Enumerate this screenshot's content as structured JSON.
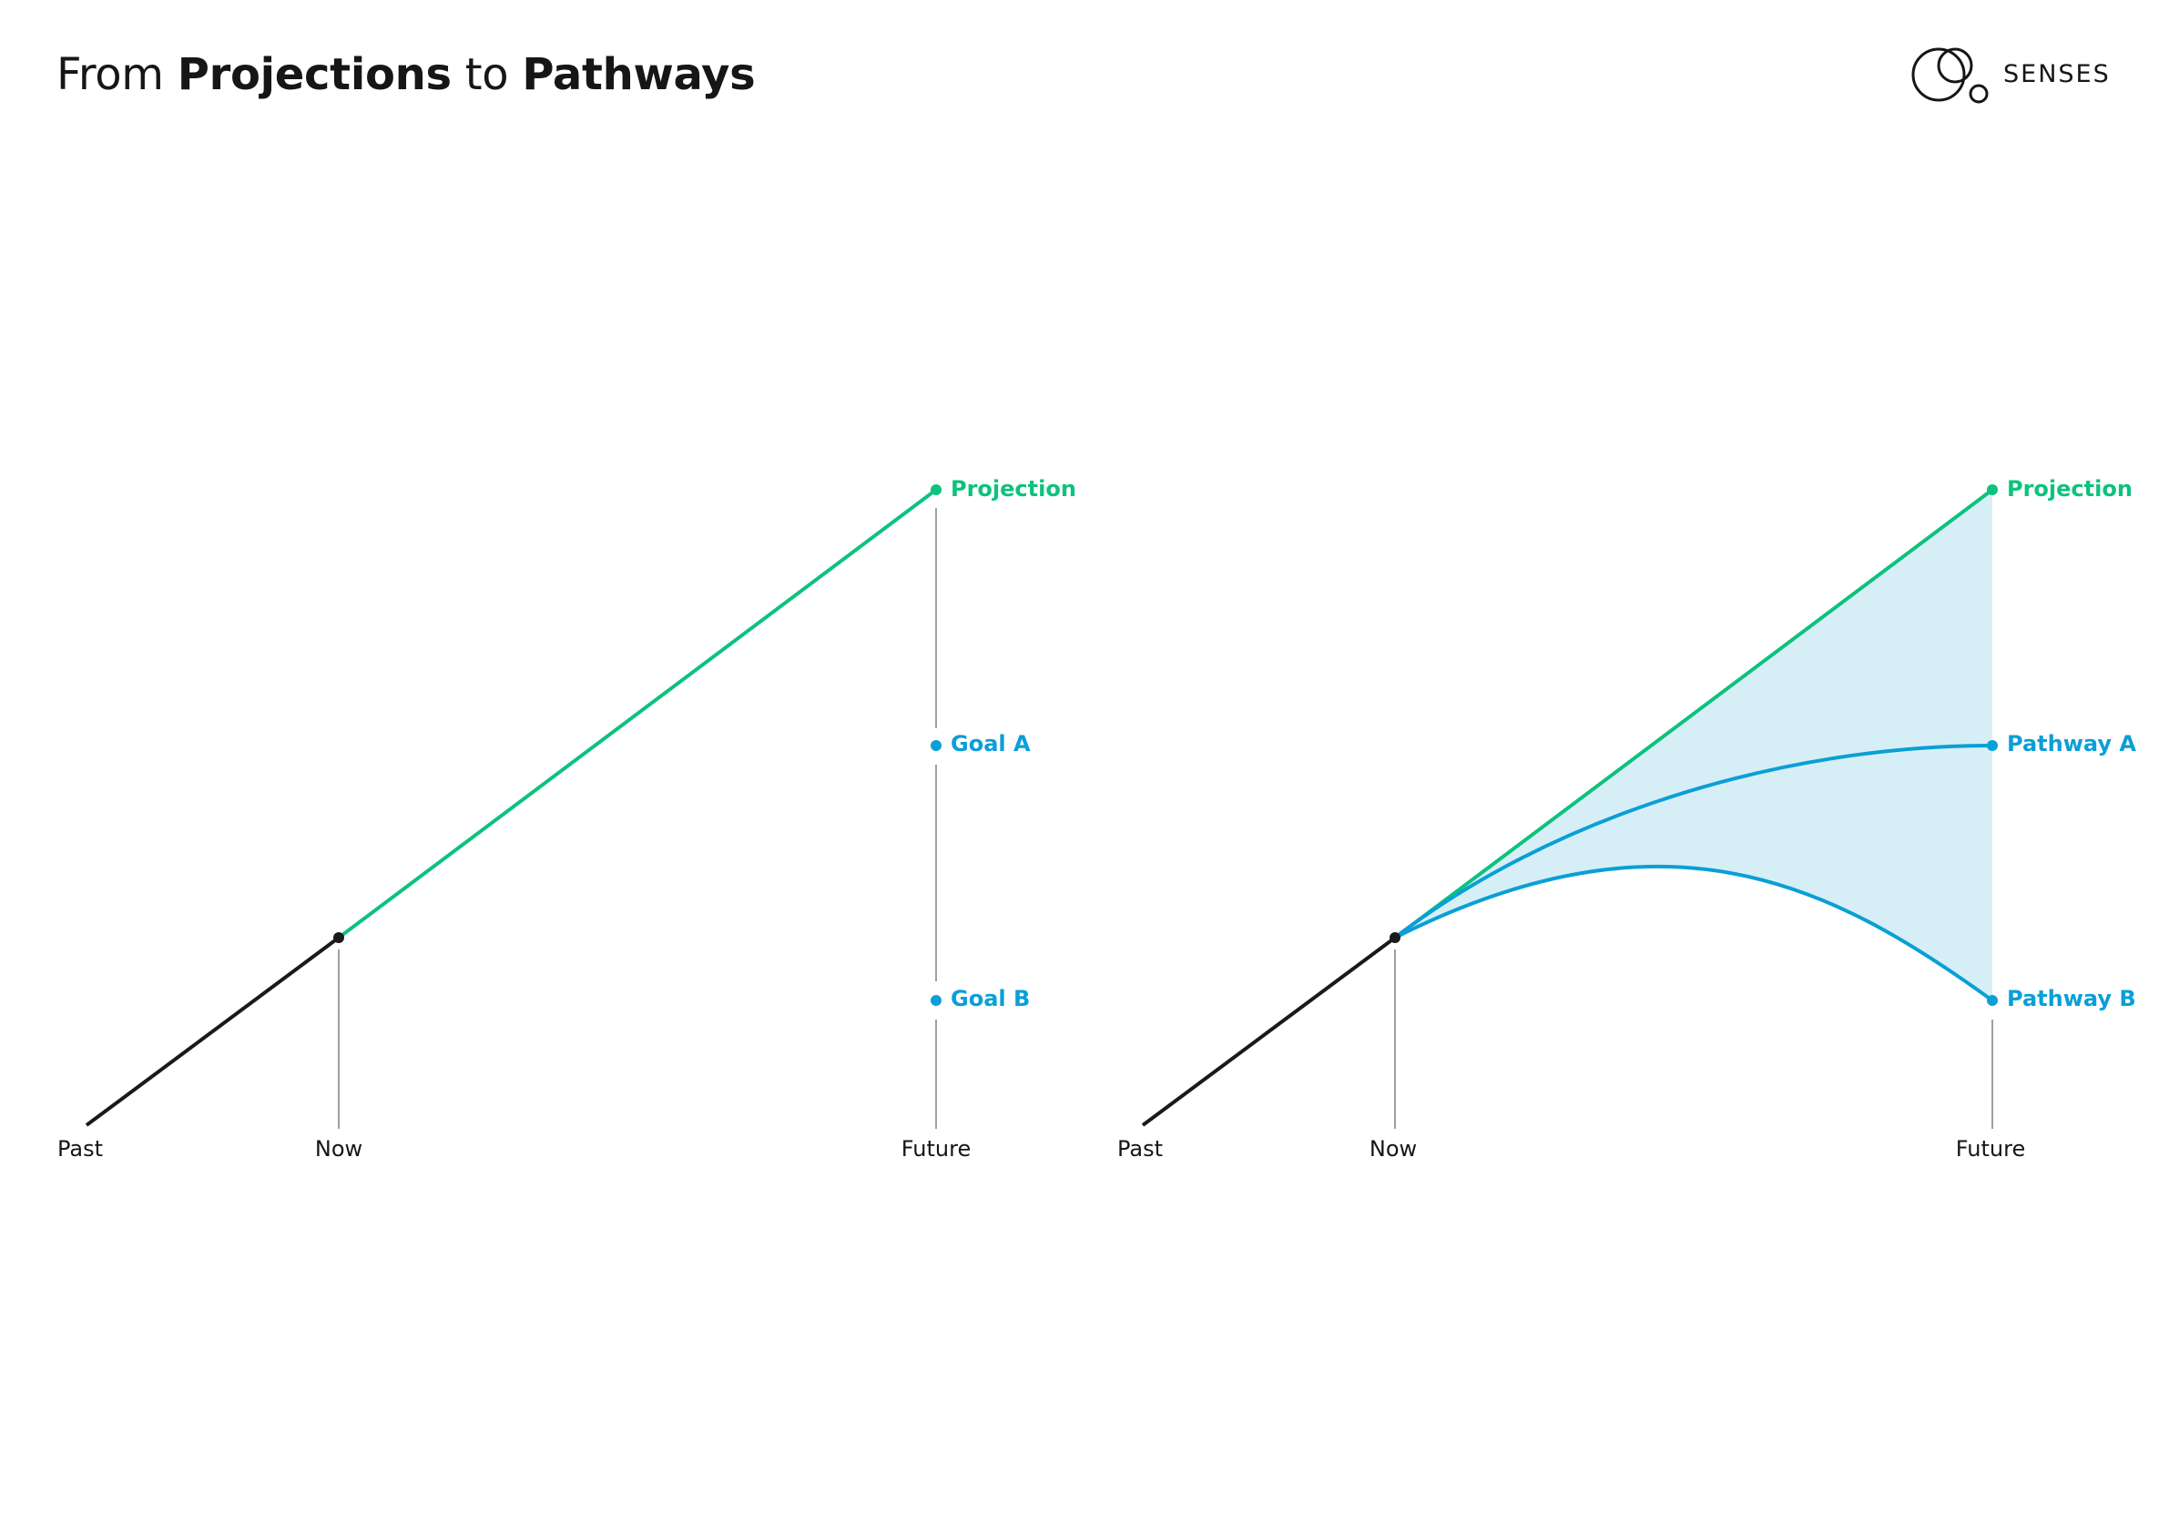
{
  "title": {
    "prefix": "From ",
    "strong1": "Projections",
    "mid": " to ",
    "strong2": "Pathways"
  },
  "brand": {
    "name": "SENSES"
  },
  "colors": {
    "projection": "#0cc27e",
    "goal": "#0a9fd6",
    "line": "#1a1a1a",
    "guide": "#a0a0a0",
    "band": "#d6eff6"
  },
  "left_panel": {
    "axis": {
      "past": "Past",
      "now": "Now",
      "future": "Future"
    },
    "labels": {
      "projection": "Projection",
      "goal_a": "Goal A",
      "goal_b": "Goal B"
    }
  },
  "right_panel": {
    "axis": {
      "past": "Past",
      "now": "Now",
      "future": "Future"
    },
    "labels": {
      "projection": "Projection",
      "pathway_a": "Pathway A",
      "pathway_b": "Pathway B"
    }
  }
}
